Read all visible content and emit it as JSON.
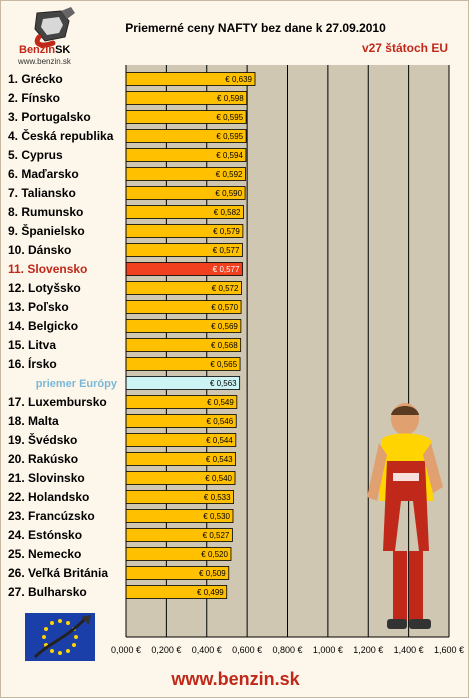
{
  "title": "Priemerné ceny NAFTY bez dane k 27.09.2010",
  "subtitle": "v27 štátoch EU",
  "logo": {
    "brand": "Benzin",
    "brand_suffix": "SK",
    "url": "www.benzin.sk"
  },
  "footer": "www.benzin.sk",
  "colors": {
    "bar": "#ffc000",
    "highlight": "#f04020",
    "average": "#ccf4f4",
    "plot_bg": "#cfc7b2",
    "accent_red": "#c0281a",
    "average_label": "#7ab8d8"
  },
  "chart_data": {
    "type": "bar",
    "orientation": "horizontal",
    "categories": [
      "1. Grécko",
      "2. Fínsko",
      "3. Portugalsko",
      "4. Česká republika",
      "5. Cyprus",
      "6. Maďarsko",
      "7. Taliansko",
      "8. Rumunsko",
      "9. Španielsko",
      "10. Dánsko",
      "11. Slovensko",
      "12. Lotyšsko",
      "13. Poľsko",
      "14. Belgicko",
      "15. Litva",
      "16. Írsko",
      "priemer Európy",
      "17. Luxembursko",
      "18. Malta",
      "19. Švédsko",
      "20. Rakúsko",
      "21. Slovinsko",
      "22. Holandsko",
      "23. Francúzsko",
      "24. Estónsko",
      "25. Nemecko",
      "26. Veľká Británia",
      "27. Bulharsko"
    ],
    "values": [
      0.639,
      0.598,
      0.595,
      0.595,
      0.594,
      0.592,
      0.59,
      0.582,
      0.579,
      0.577,
      0.577,
      0.572,
      0.57,
      0.569,
      0.568,
      0.565,
      0.563,
      0.549,
      0.546,
      0.544,
      0.543,
      0.54,
      0.533,
      0.53,
      0.527,
      0.52,
      0.509,
      0.499
    ],
    "value_labels": [
      "€ 0,639",
      "€ 0,598",
      "€ 0,595",
      "€ 0,595",
      "€ 0,594",
      "€ 0,592",
      "€ 0,590",
      "€ 0,582",
      "€ 0,579",
      "€ 0,577",
      "€ 0,577",
      "€ 0,572",
      "€ 0,570",
      "€ 0,569",
      "€ 0,568",
      "€ 0,565",
      "€ 0,563",
      "€ 0,549",
      "€ 0,546",
      "€ 0,544",
      "€ 0,543",
      "€ 0,540",
      "€ 0,533",
      "€ 0,530",
      "€ 0,527",
      "€ 0,520",
      "€ 0,509",
      "€ 0,499"
    ],
    "highlight_index": 10,
    "average_index": 16,
    "xlim": [
      0,
      1.6
    ],
    "x_ticks": [
      0,
      0.2,
      0.4,
      0.6,
      0.8,
      1.0,
      1.2,
      1.4,
      1.6
    ],
    "x_tick_labels": [
      "0,000 €",
      "0,200 €",
      "0,400 €",
      "0,600 €",
      "0,800 €",
      "1,000 €",
      "1,200 €",
      "1,400 €",
      "1,600 €"
    ],
    "grid": true
  }
}
